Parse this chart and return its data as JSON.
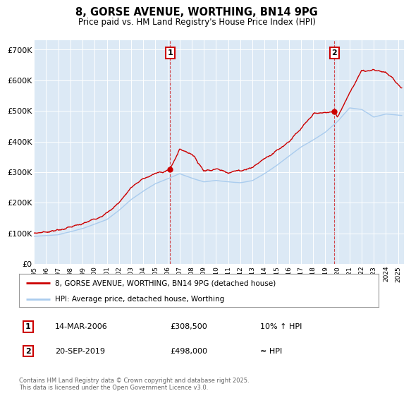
{
  "title": "8, GORSE AVENUE, WORTHING, BN14 9PG",
  "subtitle": "Price paid vs. HM Land Registry's House Price Index (HPI)",
  "ylabel_ticks": [
    "£0",
    "£100K",
    "£200K",
    "£300K",
    "£400K",
    "£500K",
    "£600K",
    "£700K"
  ],
  "ylim": [
    0,
    730000
  ],
  "yticks": [
    0,
    100000,
    200000,
    300000,
    400000,
    500000,
    600000,
    700000
  ],
  "plot_bg": "#dce9f5",
  "line1_color": "#cc0000",
  "line2_color": "#aaccee",
  "marker1_x": 2006.21,
  "marker2_x": 2019.75,
  "sale1_y": 308500,
  "sale2_y": 498000,
  "annotation1": {
    "label": "1",
    "date": "14-MAR-2006",
    "price": "£308,500",
    "rel": "10% ↑ HPI"
  },
  "annotation2": {
    "label": "2",
    "date": "20-SEP-2019",
    "price": "£498,000",
    "rel": "≈ HPI"
  },
  "legend1": "8, GORSE AVENUE, WORTHING, BN14 9PG (detached house)",
  "legend2": "HPI: Average price, detached house, Worthing",
  "footer": "Contains HM Land Registry data © Crown copyright and database right 2025.\nThis data is licensed under the Open Government Licence v3.0.",
  "xmin": 1995,
  "xmax": 2025.5
}
